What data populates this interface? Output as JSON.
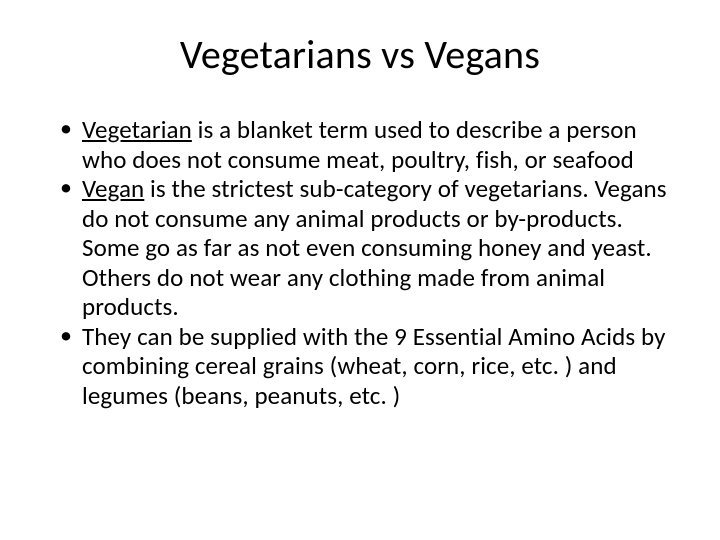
{
  "slide": {
    "title": "Vegetarians vs Vegans",
    "bullets": [
      {
        "lead": "Vegetarian",
        "rest": " is a blanket term used to describe a person who does not consume meat, poultry, fish, or seafood"
      },
      {
        "lead": "Vegan",
        "rest": " is the strictest sub-category of vegetarians. Vegans do not consume any animal products or by-products. Some go as far as not even consuming honey and yeast. Others do not wear any clothing made from animal products."
      },
      {
        "lead": "",
        "rest": "They can be supplied with the 9 Essential Amino Acids by combining cereal grains (wheat, corn, rice, etc. ) and legumes (beans, peanuts, etc. )"
      }
    ],
    "colors": {
      "background": "#ffffff",
      "text": "#000000"
    },
    "typography": {
      "title_fontsize": 40,
      "body_fontsize": 25,
      "font_family": "Calibri"
    }
  }
}
